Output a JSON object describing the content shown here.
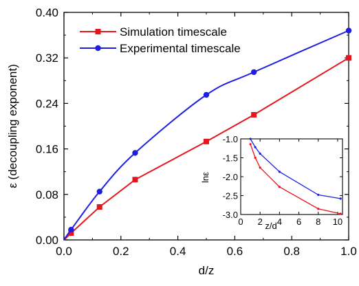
{
  "chart_data": [
    {
      "type": "line",
      "xlabel": "d/z",
      "ylabel": "ε (decoupling exponent)",
      "xlim": [
        0.0,
        1.0
      ],
      "ylim": [
        0.0,
        0.4
      ],
      "xticks": [
        "0.0",
        "0.2",
        "0.4",
        "0.6",
        "0.8",
        "1.0"
      ],
      "yticks": [
        "0.00",
        "0.08",
        "0.16",
        "0.24",
        "0.32",
        "0.40"
      ],
      "legend_position": "top-left",
      "grid": false,
      "series": [
        {
          "name": "Simulation timescale",
          "color": "#e8141c",
          "marker": "square",
          "x": [
            0.0,
            0.025,
            0.125,
            0.25,
            0.5,
            0.667,
            1.0
          ],
          "y": [
            0.0,
            0.012,
            0.058,
            0.106,
            0.173,
            0.22,
            0.32
          ]
        },
        {
          "name": "Experimental  timescale",
          "color": "#1e1ee0",
          "marker": "circle",
          "x": [
            0.0,
            0.025,
            0.125,
            0.25,
            0.5,
            0.667,
            1.0
          ],
          "y": [
            0.0,
            0.018,
            0.085,
            0.153,
            0.255,
            0.295,
            0.368
          ]
        }
      ]
    },
    {
      "type": "line",
      "inset": true,
      "xlabel": "z/d",
      "ylabel": "lnε",
      "xlim": [
        0,
        10.5
      ],
      "ylim": [
        -3.0,
        -1.0
      ],
      "xticks": [
        "0",
        "2",
        "4",
        "6",
        "8",
        "10"
      ],
      "yticks": [
        "-1.0",
        "-1.5",
        "-2.0",
        "-2.5",
        "-3.0"
      ],
      "grid": false,
      "series": [
        {
          "color": "#e8141c",
          "marker": "dot",
          "x": [
            1.0,
            1.5,
            2.0,
            4.0,
            8.0,
            10.3
          ],
          "y": [
            -1.14,
            -1.5,
            -1.76,
            -2.27,
            -2.85,
            -2.98
          ]
        },
        {
          "color": "#1e1ee0",
          "marker": "dot",
          "x": [
            1.0,
            1.5,
            2.0,
            4.0,
            8.0,
            10.3
          ],
          "y": [
            -1.0,
            -1.22,
            -1.39,
            -1.87,
            -2.48,
            -2.58
          ]
        }
      ]
    }
  ]
}
